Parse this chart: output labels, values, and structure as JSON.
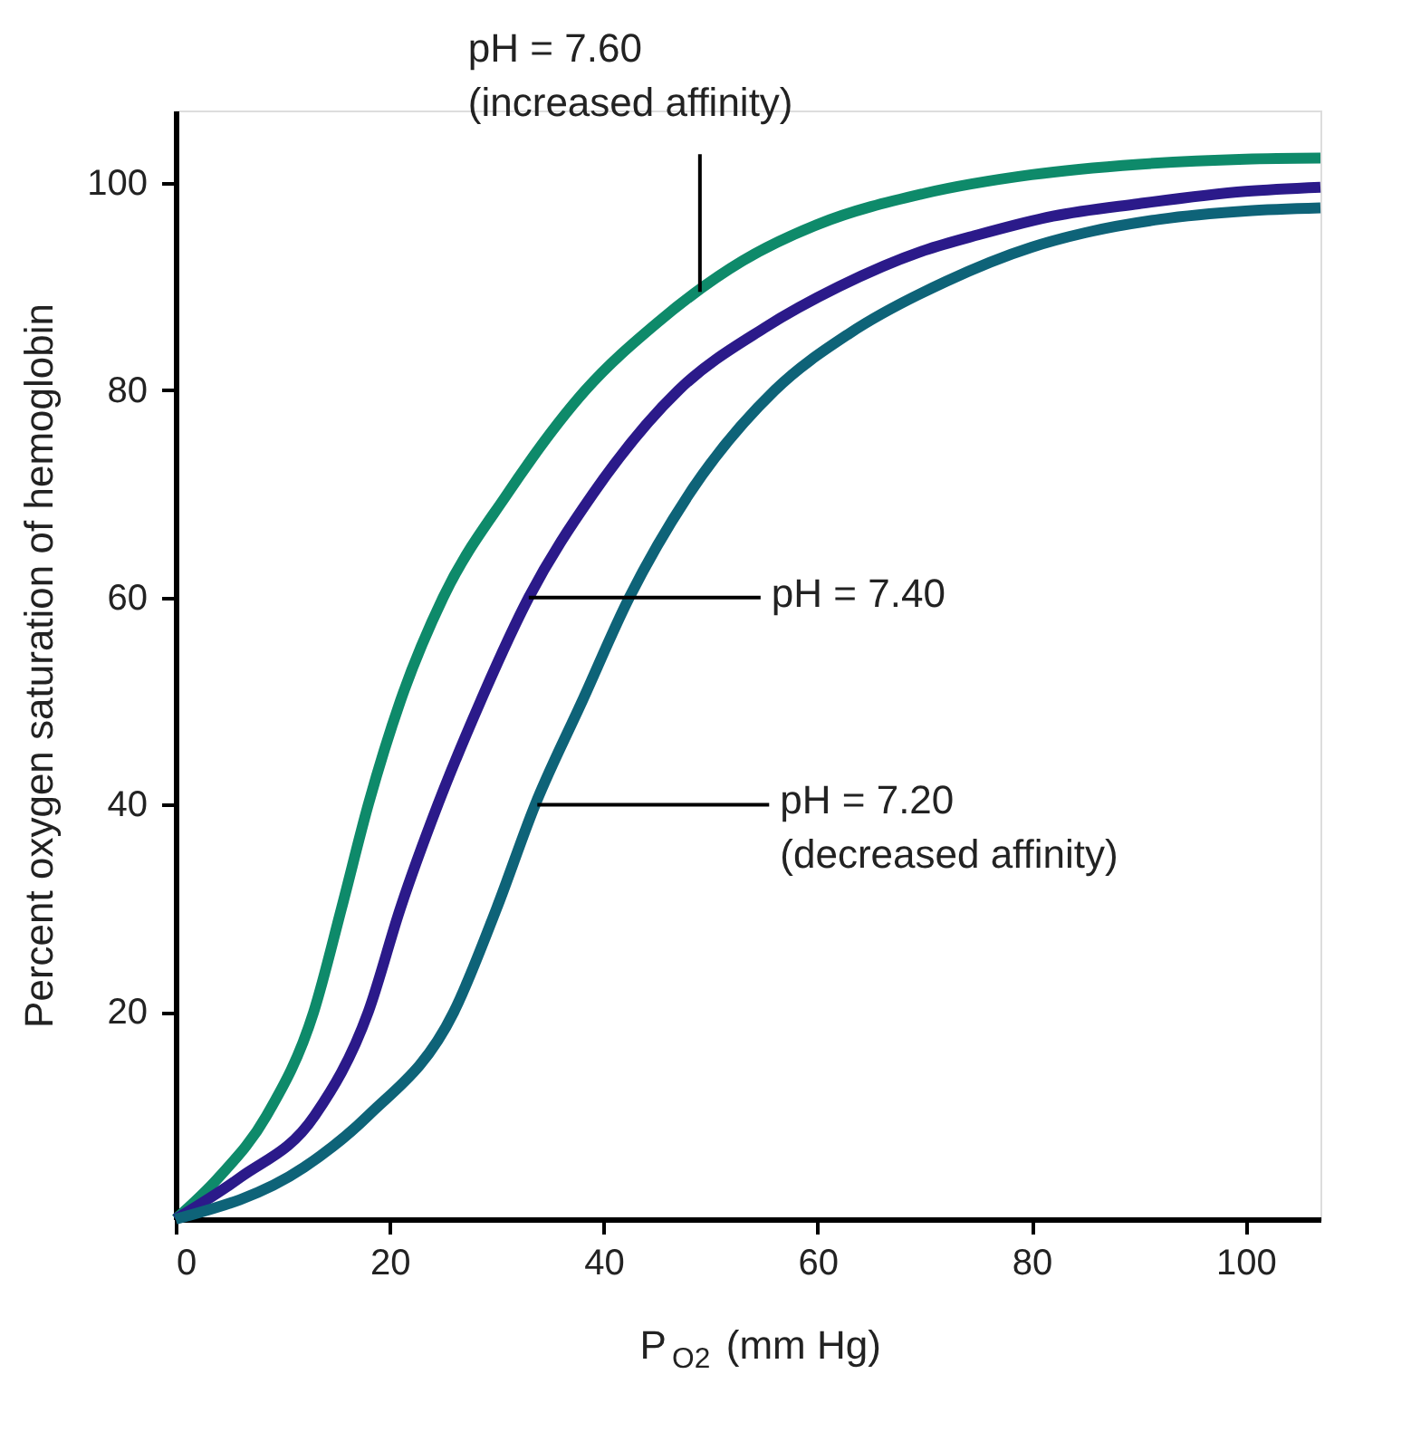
{
  "chart_data": {
    "type": "line",
    "xlabel": "P$_{O2}$ (mm Hg)",
    "ylabel": "Percent oxygen saturation of hemoglobin",
    "xlim": [
      0,
      107
    ],
    "ylim": [
      0,
      107
    ],
    "xticks": [
      0,
      20,
      40,
      60,
      80,
      100
    ],
    "yticks": [
      20,
      40,
      60,
      80,
      100
    ],
    "grid": false,
    "legend": false,
    "line_style": "solid",
    "series": [
      {
        "color": "#0e8a6a",
        "x": [
          0,
          4,
          8.5,
          12.9,
          15.5,
          18,
          21,
          25,
          31,
          38.3,
          45,
          53,
          60,
          70,
          80,
          90,
          100,
          107
        ],
        "values": [
          0,
          4,
          10,
          20,
          30,
          40,
          50,
          60,
          70,
          80,
          86.5,
          92.5,
          96,
          99,
          100.8,
          101.8,
          102.3,
          102.4
        ]
      },
      {
        "color": "#2b1a8a",
        "x": [
          0,
          6,
          13,
          18,
          21,
          24.5,
          28.5,
          33,
          39,
          47,
          55,
          62,
          70,
          75,
          82,
          90,
          100,
          107
        ],
        "values": [
          0,
          4,
          10,
          20,
          30,
          40,
          50,
          60,
          70,
          80,
          86,
          90,
          93.5,
          95,
          96.8,
          98,
          99.2,
          99.6
        ]
      },
      {
        "color": "#0e6378",
        "x": [
          0,
          12,
          18,
          26,
          30,
          33.6,
          38,
          42.4,
          48,
          56,
          63,
          72,
          80,
          85,
          92,
          100,
          107
        ],
        "values": [
          0,
          5,
          10,
          20,
          30,
          40,
          50,
          60,
          70,
          80,
          85.5,
          90.5,
          93.8,
          95.2,
          96.5,
          97.3,
          97.6
        ]
      }
    ],
    "annotations": [
      {
        "text": "pH = 7.60\n(increased affinity)",
        "x": 49,
        "y": 89.5
      },
      {
        "text": "pH = 7.40",
        "x": 33,
        "y": 60
      },
      {
        "text": "pH = 7.20\n(decreased affinity)",
        "x": 33.8,
        "y": 40
      }
    ]
  }
}
